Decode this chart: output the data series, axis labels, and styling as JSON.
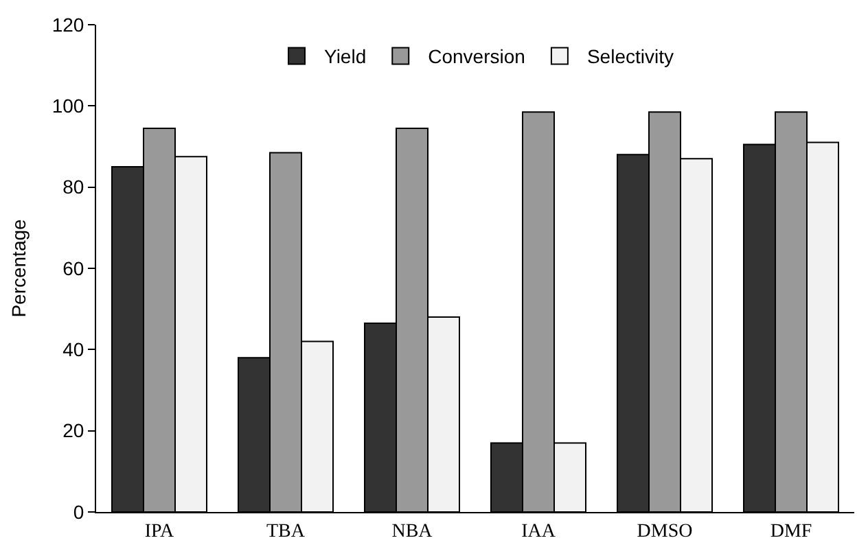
{
  "chart_data": {
    "type": "bar",
    "ylabel": "Percentage",
    "categories": [
      "IPA",
      "TBA",
      "NBA",
      "IAA",
      "DMSO",
      "DMF"
    ],
    "series": [
      {
        "name": "Yield",
        "color": "#333333",
        "values": [
          85,
          38,
          46.5,
          17,
          88,
          90.5
        ]
      },
      {
        "name": "Conversion",
        "color": "#999999",
        "values": [
          94.5,
          88.5,
          94.5,
          98.5,
          98.5,
          98.5
        ]
      },
      {
        "name": "Selectivity",
        "color": "#f2f2f2",
        "values": [
          87.5,
          42,
          48,
          17,
          87,
          91
        ]
      }
    ],
    "ylim": [
      0,
      120
    ],
    "yticks": [
      0,
      20,
      40,
      60,
      80,
      100,
      120
    ],
    "legend": "top"
  }
}
